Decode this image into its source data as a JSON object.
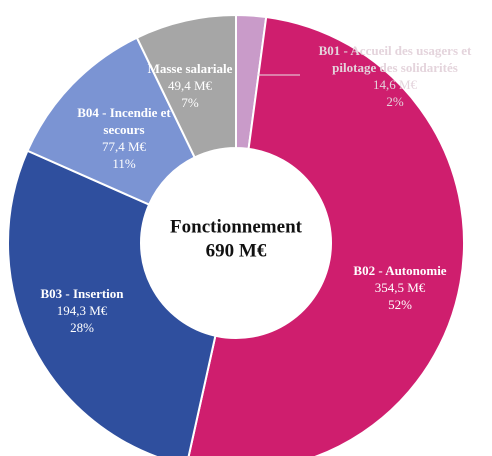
{
  "chart_data": {
    "type": "donut",
    "center_text": [
      "Fonctionnement",
      "690 M€"
    ],
    "categories": [
      "B01 - Accueil des usagers et pilotage des solidarités",
      "B02 - Autonomie",
      "B03 - Insertion",
      "B04 - Incendie et secours",
      "Masse salariale"
    ],
    "values": [
      14.6,
      354.5,
      194.3,
      77.4,
      49.4
    ],
    "value_labels": [
      "14,6 M€",
      "354,5 M€",
      "194,3 M€",
      "77,4 M€",
      "49,4 M€"
    ],
    "percents": [
      2,
      52,
      28,
      11,
      7
    ],
    "percent_labels": [
      "2%",
      "52%",
      "28%",
      "11%",
      "7%"
    ],
    "colors": [
      "#c99bc9",
      "#cf1e6e",
      "#2f4f9e",
      "#7b94d3",
      "#a6a6a6"
    ]
  }
}
